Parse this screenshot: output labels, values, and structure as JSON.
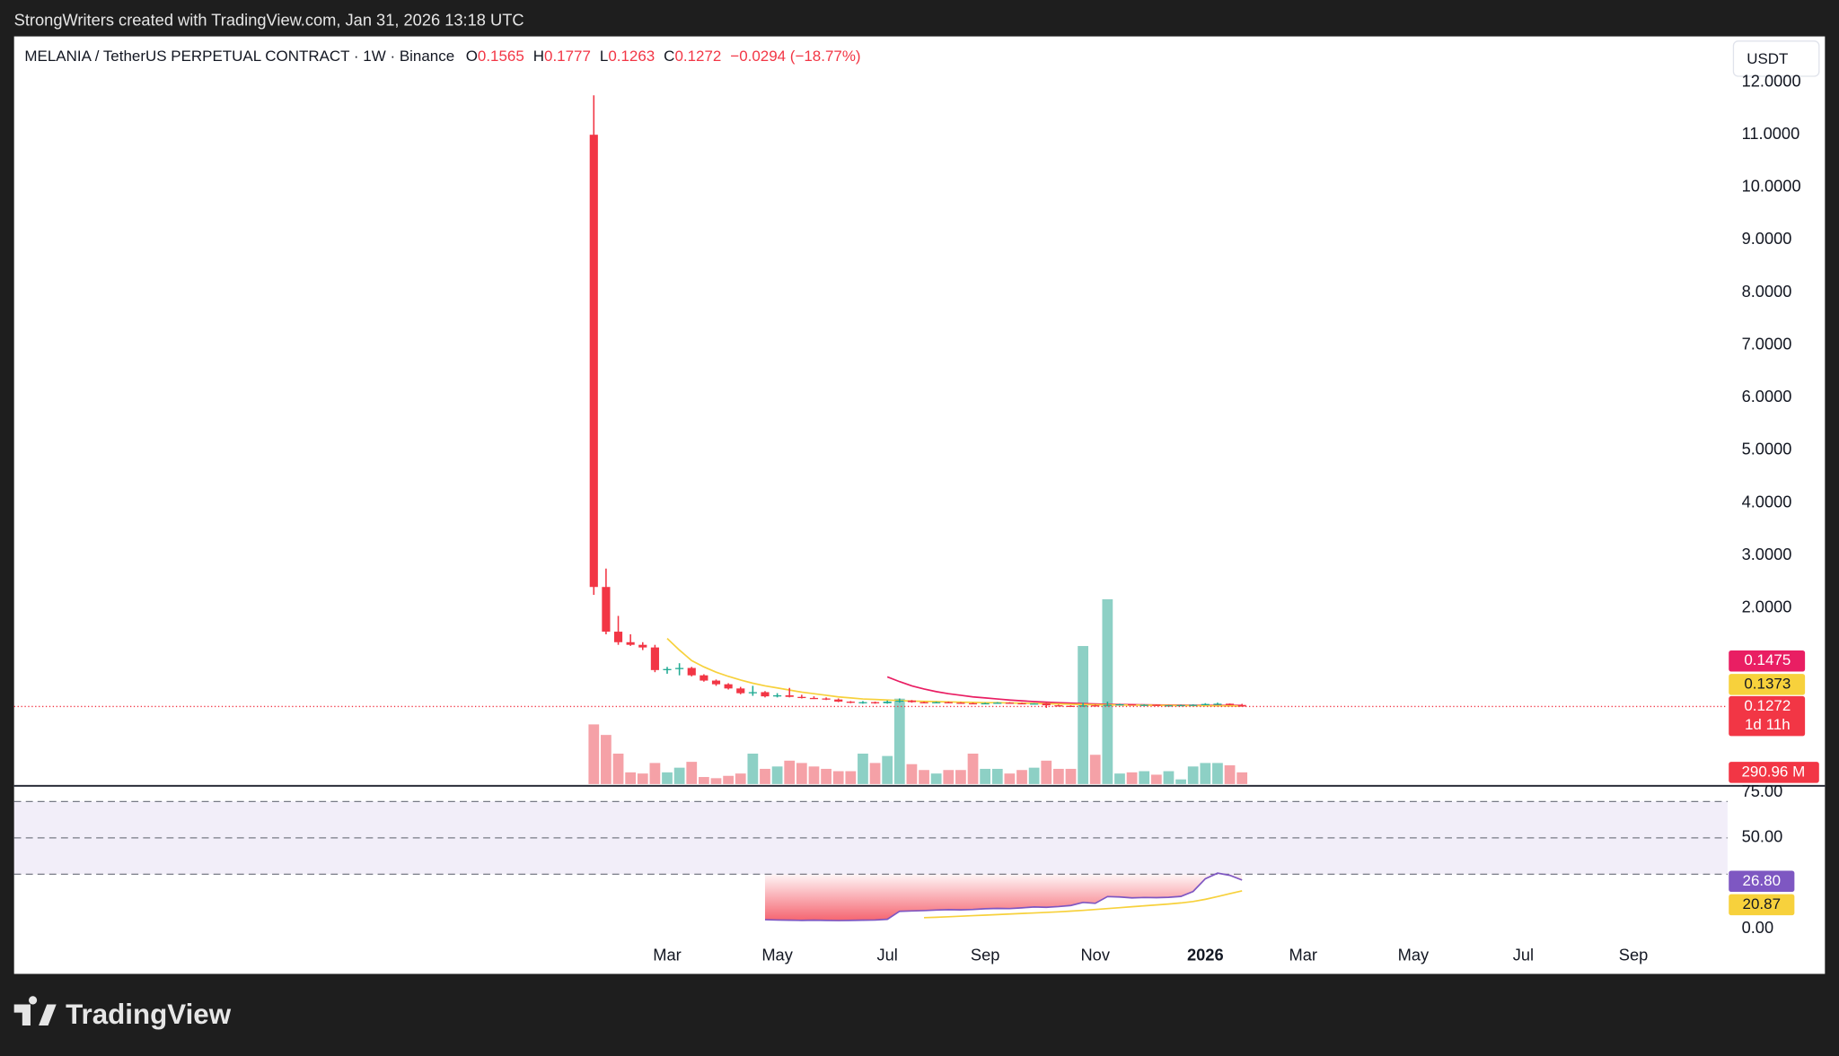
{
  "header": {
    "credit": "StrongWriters created with TradingView.com, Jan 31, 2026 13:18 UTC"
  },
  "footer": {
    "brand": "TradingView"
  },
  "chart_data": {
    "type": "candlestick",
    "title": "MELANIA / TetherUS PERPETUAL CONTRACT · 1W · Binance",
    "ohlc_prefixes": [
      "O",
      "H",
      "L",
      "C"
    ],
    "change_label": "−0.0294 (−18.77%)",
    "currency": "USDT",
    "countdown": "1d 11h",
    "up_color": "#22ab94",
    "down_color": "#f23645",
    "open": [
      11.0,
      2.4,
      1.55,
      1.35,
      1.3,
      1.25,
      0.82,
      0.84,
      0.86,
      0.72,
      0.62,
      0.55,
      0.47,
      0.38,
      0.4,
      0.32,
      0.34,
      0.31,
      0.29,
      0.28,
      0.26,
      0.22,
      0.2,
      0.21,
      0.19,
      0.22,
      0.24,
      0.21,
      0.2,
      0.21,
      0.2,
      0.19,
      0.18,
      0.19,
      0.2,
      0.19,
      0.18,
      0.185,
      0.15,
      0.14,
      0.135,
      0.15,
      0.14,
      0.16,
      0.17,
      0.155,
      0.16,
      0.145,
      0.15,
      0.155,
      0.16,
      0.175,
      0.18,
      0.1565
    ],
    "high": [
      11.75,
      2.75,
      1.85,
      1.5,
      1.35,
      1.3,
      0.88,
      0.95,
      0.88,
      0.74,
      0.64,
      0.57,
      0.5,
      0.52,
      0.42,
      0.38,
      0.48,
      0.35,
      0.32,
      0.3,
      0.28,
      0.23,
      0.23,
      0.22,
      0.24,
      0.28,
      0.25,
      0.22,
      0.22,
      0.22,
      0.21,
      0.2,
      0.2,
      0.21,
      0.21,
      0.2,
      0.19,
      0.19,
      0.16,
      0.15,
      0.2,
      0.16,
      0.22,
      0.18,
      0.175,
      0.17,
      0.165,
      0.155,
      0.16,
      0.17,
      0.19,
      0.2,
      0.185,
      0.1777
    ],
    "low": [
      2.25,
      1.5,
      1.3,
      1.28,
      1.2,
      0.78,
      0.75,
      0.72,
      0.7,
      0.6,
      0.52,
      0.45,
      0.36,
      0.33,
      0.3,
      0.3,
      0.3,
      0.28,
      0.27,
      0.25,
      0.21,
      0.19,
      0.18,
      0.18,
      0.18,
      0.2,
      0.2,
      0.19,
      0.19,
      0.19,
      0.18,
      0.17,
      0.17,
      0.18,
      0.18,
      0.17,
      0.17,
      0.1,
      0.13,
      0.13,
      0.12,
      0.13,
      0.13,
      0.15,
      0.15,
      0.15,
      0.14,
      0.14,
      0.145,
      0.15,
      0.155,
      0.17,
      0.15,
      0.1263
    ],
    "close": [
      2.4,
      1.55,
      1.35,
      1.3,
      1.25,
      0.82,
      0.84,
      0.86,
      0.72,
      0.62,
      0.55,
      0.47,
      0.38,
      0.4,
      0.32,
      0.34,
      0.31,
      0.29,
      0.28,
      0.26,
      0.22,
      0.2,
      0.21,
      0.19,
      0.22,
      0.24,
      0.21,
      0.2,
      0.21,
      0.2,
      0.19,
      0.18,
      0.19,
      0.2,
      0.19,
      0.18,
      0.185,
      0.15,
      0.14,
      0.135,
      0.15,
      0.14,
      0.16,
      0.17,
      0.155,
      0.16,
      0.145,
      0.15,
      0.155,
      0.16,
      0.175,
      0.18,
      0.1565,
      0.1272
    ],
    "xlim": [
      -47.4,
      92.7
    ],
    "xticks": [
      {
        "value": 6,
        "label": "Mar"
      },
      {
        "value": 15,
        "label": "May"
      },
      {
        "value": 24,
        "label": "Jul"
      },
      {
        "value": 32,
        "label": "Sep"
      },
      {
        "value": 41,
        "label": "Nov"
      },
      {
        "value": 50,
        "label": "2026"
      },
      {
        "value": 58,
        "label": "Mar"
      },
      {
        "value": 67,
        "label": "May"
      },
      {
        "value": 76,
        "label": "Jul"
      },
      {
        "value": 85,
        "label": "Sep"
      }
    ],
    "ylim": [
      -1.37,
      12.87
    ],
    "yticks": [
      {
        "value": 2,
        "label": "2.0000"
      },
      {
        "value": 3,
        "label": "3.0000"
      },
      {
        "value": 4,
        "label": "4.0000"
      },
      {
        "value": 5,
        "label": "5.0000"
      },
      {
        "value": 6,
        "label": "6.0000"
      },
      {
        "value": 7,
        "label": "7.0000"
      },
      {
        "value": 8,
        "label": "8.0000"
      },
      {
        "value": 9,
        "label": "9.0000"
      },
      {
        "value": 10,
        "label": "10.0000"
      },
      {
        "value": 11,
        "label": "11.0000"
      },
      {
        "value": 12,
        "label": "12.0000"
      }
    ],
    "moving_averages": [
      {
        "color": "#e91e63",
        "values": [
          null,
          null,
          null,
          null,
          null,
          null,
          null,
          null,
          null,
          null,
          null,
          null,
          null,
          null,
          null,
          null,
          null,
          null,
          null,
          null,
          null,
          null,
          null,
          null,
          0.69,
          0.6,
          0.52,
          0.46,
          0.41,
          0.37,
          0.34,
          0.31,
          0.29,
          0.27,
          0.25,
          0.235,
          0.22,
          0.21,
          0.2,
          0.19,
          0.182,
          0.176,
          0.17,
          0.166,
          0.162,
          0.159,
          0.156,
          0.154,
          0.152,
          0.151,
          0.15,
          0.149,
          0.148,
          0.1475
        ]
      },
      {
        "color": "#f7d13c",
        "values": [
          null,
          null,
          null,
          null,
          null,
          null,
          1.42,
          1.2,
          1.0,
          0.88,
          0.78,
          0.7,
          0.63,
          0.57,
          0.52,
          0.48,
          0.44,
          0.4,
          0.37,
          0.34,
          0.31,
          0.29,
          0.27,
          0.26,
          0.25,
          0.24,
          0.23,
          0.225,
          0.22,
          0.215,
          0.21,
          0.205,
          0.2,
          0.2,
          0.195,
          0.19,
          0.185,
          0.18,
          0.175,
          0.17,
          0.165,
          0.16,
          0.158,
          0.156,
          0.154,
          0.152,
          0.15,
          0.148,
          0.146,
          0.144,
          0.142,
          0.14,
          0.139,
          0.1373
        ]
      }
    ],
    "volume": {
      "up_color": "#8dd0c5",
      "down_color": "#f5a1a7",
      "ylim": [
        0,
        10000
      ],
      "last_label": "290.96 M",
      "values": [
        1484,
        1222,
        757,
        291,
        262,
        524,
        291,
        407,
        553,
        175,
        146,
        204,
        262,
        757,
        378,
        437,
        582,
        524,
        437,
        378,
        320,
        320,
        757,
        524,
        698,
        2124,
        495,
        349,
        262,
        349,
        349,
        757,
        378,
        378,
        262,
        349,
        407,
        582,
        378,
        378,
        3434,
        728,
        4598,
        262,
        291,
        320,
        233,
        320,
        116,
        437,
        524,
        524,
        466,
        290.96
      ]
    },
    "rsi": {
      "color": "#7e57c2",
      "ma_color": "#f7d13c",
      "ylim": [
        -24.2,
        77.7
      ],
      "bands": [
        70,
        50,
        30
      ],
      "last_label": "26.80",
      "yticks": [
        {
          "value": 0,
          "label": "0.00"
        },
        {
          "value": 50,
          "label": "50.00"
        },
        {
          "value": 75,
          "label": "75.00"
        }
      ],
      "values": [
        null,
        null,
        null,
        null,
        null,
        null,
        null,
        null,
        null,
        null,
        null,
        null,
        null,
        null,
        5.0,
        4.8,
        4.7,
        4.6,
        4.7,
        4.6,
        4.5,
        4.6,
        4.7,
        4.8,
        5.2,
        9.6,
        9.8,
        10.0,
        10.3,
        10.5,
        10.4,
        10.6,
        11.0,
        11.2,
        11.1,
        11.5,
        12.0,
        11.8,
        12.2,
        12.8,
        14.5,
        14.0,
        17.7,
        17.5,
        17.0,
        17.2,
        17.1,
        17.3,
        17.8,
        20.5,
        27.5,
        30.6,
        29.4,
        26.8
      ],
      "ma_values": [
        null,
        null,
        null,
        null,
        null,
        null,
        null,
        null,
        null,
        null,
        null,
        null,
        null,
        null,
        null,
        null,
        null,
        null,
        null,
        null,
        null,
        null,
        null,
        null,
        null,
        null,
        null,
        6.1,
        6.3,
        6.6,
        6.9,
        7.2,
        7.5,
        7.8,
        8.1,
        8.4,
        8.7,
        9.0,
        9.3,
        9.7,
        10.1,
        10.6,
        11.1,
        11.6,
        12.1,
        12.6,
        13.1,
        13.6,
        14.2,
        15.0,
        16.2,
        17.7,
        19.3,
        20.87
      ]
    }
  }
}
